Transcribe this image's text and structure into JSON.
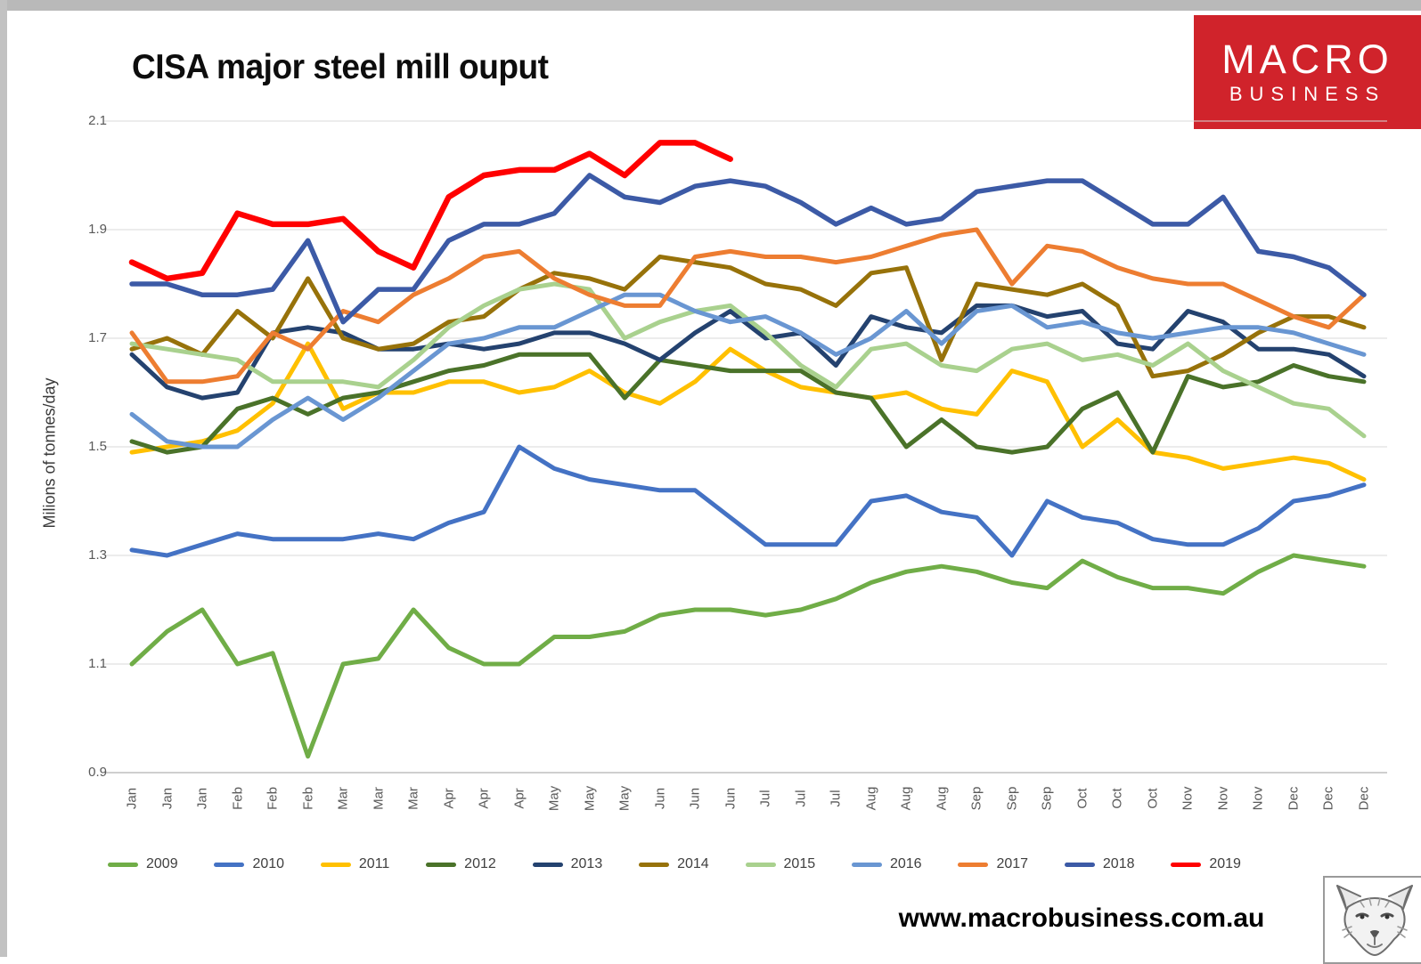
{
  "header": {
    "title": "CISA major steel mill ouput"
  },
  "logo": {
    "line1": "MACRO",
    "line2": "BUSINESS",
    "bg_color": "#d0232b"
  },
  "footer": {
    "url": "www.macrobusiness.com.au",
    "wolf_icon": "fox-sketch-logo"
  },
  "chart_data": {
    "type": "line",
    "title": "CISA major steel mill ouput",
    "xlabel": "",
    "ylabel": "Milions of tonnes/day",
    "ylim": [
      0.9,
      2.1
    ],
    "yticks": [
      2.1,
      1.9,
      1.7,
      1.5,
      1.3,
      1.1,
      0.9
    ],
    "grid": "horizontal",
    "legend_position": "bottom",
    "categories": [
      "Jan",
      "Jan",
      "Jan",
      "Feb",
      "Feb",
      "Feb",
      "Mar",
      "Mar",
      "Mar",
      "Apr",
      "Apr",
      "Apr",
      "May",
      "May",
      "May",
      "Jun",
      "Jun",
      "Jun",
      "Jul",
      "Jul",
      "Jul",
      "Aug",
      "Aug",
      "Aug",
      "Sep",
      "Sep",
      "Sep",
      "Oct",
      "Oct",
      "Oct",
      "Nov",
      "Nov",
      "Nov",
      "Dec",
      "Dec",
      "Dec"
    ],
    "series": [
      {
        "name": "2009",
        "color": "#70AD47",
        "width": 5,
        "values": [
          1.1,
          1.16,
          1.2,
          1.1,
          1.12,
          0.93,
          1.1,
          1.11,
          1.2,
          1.13,
          1.1,
          1.1,
          1.15,
          1.15,
          1.16,
          1.19,
          1.2,
          1.2,
          1.19,
          1.2,
          1.22,
          1.25,
          1.27,
          1.28,
          1.27,
          1.25,
          1.24,
          1.29,
          1.26,
          1.24,
          1.24,
          1.23,
          1.27,
          1.3,
          1.29,
          1.28
        ]
      },
      {
        "name": "2010",
        "color": "#4472C4",
        "width": 5,
        "values": [
          1.31,
          1.3,
          1.32,
          1.34,
          1.33,
          1.33,
          1.33,
          1.34,
          1.33,
          1.36,
          1.38,
          1.5,
          1.46,
          1.44,
          1.43,
          1.42,
          1.42,
          1.37,
          1.32,
          1.32,
          1.32,
          1.4,
          1.41,
          1.38,
          1.37,
          1.3,
          1.4,
          1.37,
          1.36,
          1.33,
          1.32,
          1.32,
          1.35,
          1.4,
          1.41,
          1.43
        ]
      },
      {
        "name": "2011",
        "color": "#FFC000",
        "width": 5,
        "values": [
          1.49,
          1.5,
          1.51,
          1.53,
          1.58,
          1.69,
          1.57,
          1.6,
          1.6,
          1.62,
          1.62,
          1.6,
          1.61,
          1.64,
          1.6,
          1.58,
          1.62,
          1.68,
          1.64,
          1.61,
          1.6,
          1.59,
          1.6,
          1.57,
          1.56,
          1.64,
          1.62,
          1.5,
          1.55,
          1.49,
          1.48,
          1.46,
          1.47,
          1.48,
          1.47,
          1.44
        ]
      },
      {
        "name": "2012",
        "color": "#4A7229",
        "width": 5,
        "values": [
          1.51,
          1.49,
          1.5,
          1.57,
          1.59,
          1.56,
          1.59,
          1.6,
          1.62,
          1.64,
          1.65,
          1.67,
          1.67,
          1.67,
          1.59,
          1.66,
          1.65,
          1.64,
          1.64,
          1.64,
          1.6,
          1.59,
          1.5,
          1.55,
          1.5,
          1.49,
          1.5,
          1.57,
          1.6,
          1.49,
          1.63,
          1.61,
          1.62,
          1.65,
          1.63,
          1.62
        ]
      },
      {
        "name": "2013",
        "color": "#24426F",
        "width": 5,
        "values": [
          1.67,
          1.61,
          1.59,
          1.6,
          1.71,
          1.72,
          1.71,
          1.68,
          1.68,
          1.69,
          1.68,
          1.69,
          1.71,
          1.71,
          1.69,
          1.66,
          1.71,
          1.75,
          1.7,
          1.71,
          1.65,
          1.74,
          1.72,
          1.71,
          1.76,
          1.76,
          1.74,
          1.75,
          1.69,
          1.68,
          1.75,
          1.73,
          1.68,
          1.68,
          1.67,
          1.63
        ]
      },
      {
        "name": "2014",
        "color": "#97720A",
        "width": 5,
        "values": [
          1.68,
          1.7,
          1.67,
          1.75,
          1.7,
          1.81,
          1.7,
          1.68,
          1.69,
          1.73,
          1.74,
          1.79,
          1.82,
          1.81,
          1.79,
          1.85,
          1.84,
          1.83,
          1.8,
          1.79,
          1.76,
          1.82,
          1.83,
          1.66,
          1.8,
          1.79,
          1.78,
          1.8,
          1.76,
          1.63,
          1.64,
          1.67,
          1.71,
          1.74,
          1.74,
          1.72
        ]
      },
      {
        "name": "2015",
        "color": "#A9D18E",
        "width": 5,
        "values": [
          1.69,
          1.68,
          1.67,
          1.66,
          1.62,
          1.62,
          1.62,
          1.61,
          1.66,
          1.72,
          1.76,
          1.79,
          1.8,
          1.79,
          1.7,
          1.73,
          1.75,
          1.76,
          1.71,
          1.65,
          1.61,
          1.68,
          1.69,
          1.65,
          1.64,
          1.68,
          1.69,
          1.66,
          1.67,
          1.65,
          1.69,
          1.64,
          1.61,
          1.58,
          1.57,
          1.52
        ]
      },
      {
        "name": "2016",
        "color": "#6996D2",
        "width": 5,
        "values": [
          1.56,
          1.51,
          1.5,
          1.5,
          1.55,
          1.59,
          1.55,
          1.59,
          1.64,
          1.69,
          1.7,
          1.72,
          1.72,
          1.75,
          1.78,
          1.78,
          1.75,
          1.73,
          1.74,
          1.71,
          1.67,
          1.7,
          1.75,
          1.69,
          1.75,
          1.76,
          1.72,
          1.73,
          1.71,
          1.7,
          1.71,
          1.72,
          1.72,
          1.71,
          1.69,
          1.67
        ]
      },
      {
        "name": "2017",
        "color": "#ED7D31",
        "width": 5,
        "values": [
          1.71,
          1.62,
          1.62,
          1.63,
          1.71,
          1.68,
          1.75,
          1.73,
          1.78,
          1.81,
          1.85,
          1.86,
          1.81,
          1.78,
          1.76,
          1.76,
          1.85,
          1.86,
          1.85,
          1.85,
          1.84,
          1.85,
          1.87,
          1.89,
          1.9,
          1.8,
          1.87,
          1.86,
          1.83,
          1.81,
          1.8,
          1.8,
          1.77,
          1.74,
          1.72,
          1.78
        ]
      },
      {
        "name": "2018",
        "color": "#3C5AA6",
        "width": 5.5,
        "values": [
          1.8,
          1.8,
          1.78,
          1.78,
          1.79,
          1.88,
          1.73,
          1.79,
          1.79,
          1.88,
          1.91,
          1.91,
          1.93,
          2.0,
          1.96,
          1.95,
          1.98,
          1.99,
          1.98,
          1.95,
          1.91,
          1.94,
          1.91,
          1.92,
          1.97,
          1.98,
          1.99,
          1.99,
          1.95,
          1.91,
          1.91,
          1.96,
          1.86,
          1.85,
          1.83,
          1.78
        ]
      },
      {
        "name": "2019",
        "color": "#FF0000",
        "width": 6.5,
        "values": [
          1.84,
          1.81,
          1.82,
          1.93,
          1.91,
          1.91,
          1.92,
          1.86,
          1.83,
          1.96,
          2.0,
          2.01,
          2.01,
          2.04,
          2.0,
          2.06,
          2.06,
          2.03
        ]
      }
    ]
  }
}
